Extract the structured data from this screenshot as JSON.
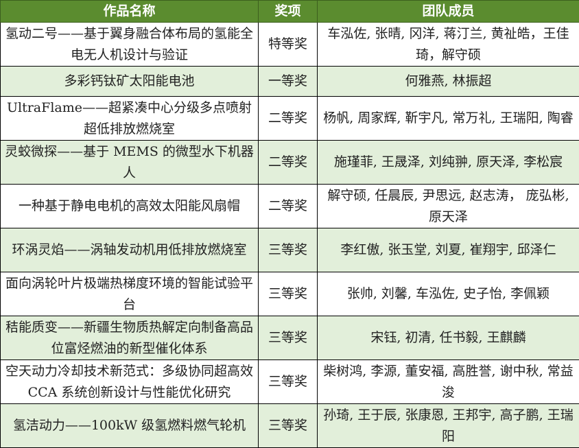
{
  "header": {
    "name": "作品名称",
    "award": "奖项",
    "members": "团队成员"
  },
  "rows": [
    {
      "name": "氢动二号——基于翼身融合体布局的氢能全电无人机设计与验证",
      "award": "特等奖",
      "members": "车泓佐, 张晴, 冈洋, 蒋汀兰, 黄祉皓，王佳琦，解守硕"
    },
    {
      "name": "多彩钙钛矿太阳能电池",
      "award": "一等奖",
      "members": "何雅燕, 林振超"
    },
    {
      "name": "UltraFlame——超紧凑中心分级多点喷射超低排放燃烧室",
      "award": "二等奖",
      "members": "杨帆, 周家辉, 靳宇凡, 常万礼, 王瑞阳, 陶睿"
    },
    {
      "name": "灵蛟微探——基于 MEMS 的微型水下机器人",
      "award": "二等奖",
      "members": "施瑾菲, 王晟泽, 刘纯翀, 原天泽, 李松宸"
    },
    {
      "name": "一种基于静电电机的高效太阳能风扇帽",
      "award": "二等奖",
      "members": "解守硕, 任晨辰, 尹思远, 赵志涛， 庞弘彬, 原天泽"
    },
    {
      "name": "环涡灵焰——涡轴发动机用低排放燃烧室",
      "award": "三等奖",
      "members": "李红傲, 张玉堂, 刘夏, 崔翔宇, 邱泽仁"
    },
    {
      "name": "面向涡轮叶片极端热梯度环境的智能试验平台",
      "award": "三等奖",
      "members": "张帅, 刘馨, 车泓佐, 史子怡, 李佩颖"
    },
    {
      "name": "秸能质变——新疆生物质热解定向制备高品位富烃燃油的新型催化体系",
      "award": "三等奖",
      "members": "宋钰, 初清, 任书毅, 王麒麟"
    },
    {
      "name": "空天动力冷却技术新范式：多级协同超高效 CCA 系统创新设计与性能优化研究",
      "award": "三等奖",
      "members": "柴树鸿, 李源, 董安福, 高胜誉, 谢中秋, 常益浚"
    },
    {
      "name": "氢洁动力——100kW 级氢燃料燃气轮机",
      "award": "三等奖",
      "members": "孙琦, 王于辰, 张康恩, 王邦宇, 高子鹏, 王瑞阳"
    }
  ],
  "colors": {
    "header_bg": "#5b8c2f",
    "alt_row_bg": "#e2efda"
  }
}
